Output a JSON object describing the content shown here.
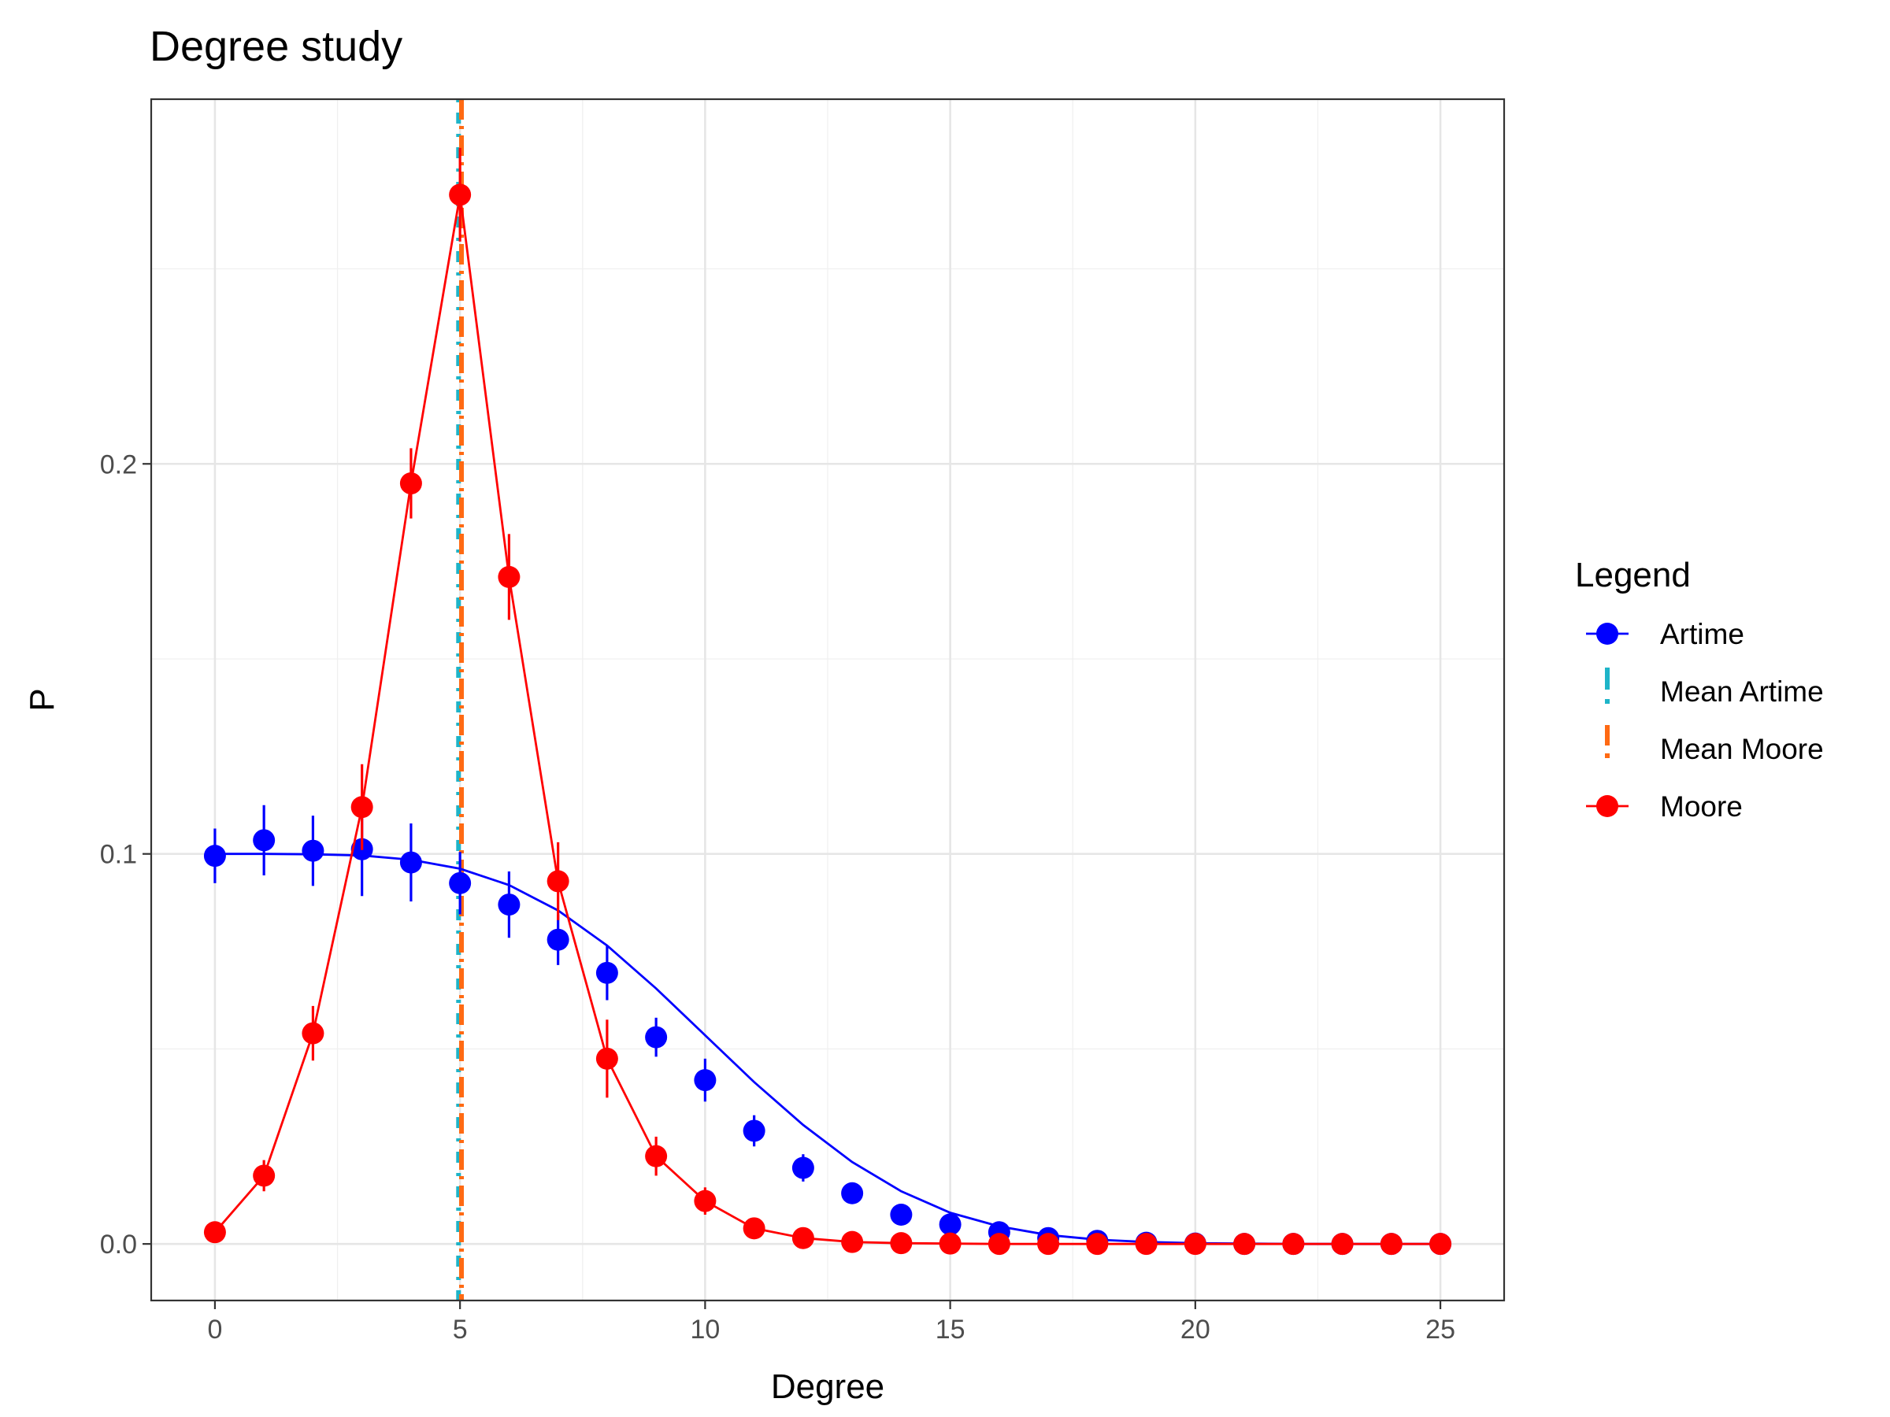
{
  "chart_data": {
    "type": "line",
    "title": "Degree study",
    "xlabel": "Degree",
    "ylabel": "P",
    "xlim": [
      -1.3,
      26.3
    ],
    "ylim": [
      -0.0145,
      0.2935
    ],
    "x_ticks": [
      0,
      5,
      10,
      15,
      20,
      25
    ],
    "x_tick_labels": [
      "0",
      "5",
      "10",
      "15",
      "20",
      "25"
    ],
    "y_ticks": [
      0.0,
      0.1,
      0.2
    ],
    "y_tick_labels": [
      "0.0",
      "0.1",
      "0.2"
    ],
    "grid": true,
    "legend": {
      "title": "Legend",
      "position": "right",
      "entries": [
        "Artime",
        "Mean Artime",
        "Mean Moore",
        "Moore"
      ]
    },
    "series": [
      {
        "name": "Artime",
        "color": "#0000ff",
        "x": [
          0,
          1,
          2,
          3,
          4,
          5,
          6,
          7,
          8,
          9,
          10,
          11,
          12,
          13,
          14,
          15,
          16,
          17,
          18,
          19,
          20,
          21,
          22,
          23,
          24,
          25
        ],
        "points": [
          0.0995,
          0.1035,
          0.1008,
          0.1012,
          0.0978,
          0.0925,
          0.087,
          0.078,
          0.0695,
          0.053,
          0.042,
          0.029,
          0.0195,
          0.013,
          0.0075,
          0.005,
          0.003,
          0.0015,
          0.0008,
          0.0003,
          0.0001,
          0.0,
          0.0,
          0.0,
          0.0,
          0.0
        ],
        "error": [
          0.007,
          0.009,
          0.009,
          0.012,
          0.01,
          0.008,
          0.0085,
          0.0065,
          0.007,
          0.005,
          0.0055,
          0.004,
          0.0035,
          0.002,
          0.001,
          0.0008,
          0.0005,
          0.0003,
          0.0002,
          0.0,
          0.0,
          0.0,
          0.0,
          0.0,
          0.0,
          0.0
        ],
        "fit": [
          0.1,
          0.1,
          0.0999,
          0.0996,
          0.0985,
          0.0962,
          0.092,
          0.0855,
          0.0765,
          0.0655,
          0.0535,
          0.0415,
          0.0305,
          0.021,
          0.0135,
          0.008,
          0.0045,
          0.0023,
          0.0011,
          0.0005,
          0.0002,
          0.0001,
          0.0,
          0.0,
          0.0,
          0.0
        ]
      },
      {
        "name": "Moore",
        "color": "#ff0000",
        "x": [
          0,
          1,
          2,
          3,
          4,
          5,
          6,
          7,
          8,
          9,
          10,
          11,
          12,
          13,
          14,
          15,
          16,
          17,
          18,
          19,
          20,
          21,
          22,
          23,
          24,
          25
        ],
        "points": [
          0.003,
          0.0175,
          0.054,
          0.112,
          0.195,
          0.269,
          0.171,
          0.093,
          0.0475,
          0.0225,
          0.011,
          0.004,
          0.0015,
          0.0005,
          0.0002,
          0.0001,
          0.0,
          0.0,
          0.0,
          0.0,
          0.0,
          0.0,
          0.0,
          0.0,
          0.0,
          0.0
        ],
        "error": [
          0.001,
          0.004,
          0.007,
          0.011,
          0.009,
          0.012,
          0.011,
          0.01,
          0.01,
          0.005,
          0.0035,
          0.001,
          0.0005,
          0.0002,
          0.0,
          0.0,
          0.0,
          0.0,
          0.0,
          0.0,
          0.0,
          0.0,
          0.0,
          0.0,
          0.0,
          0.0
        ]
      }
    ],
    "vlines": [
      {
        "name": "Mean Artime",
        "x": 4.97,
        "color": "#1eb4c8",
        "dash": "dotdash"
      },
      {
        "name": "Mean Moore",
        "x": 5.03,
        "color": "#ff6a13",
        "dash": "longdash-dot"
      }
    ]
  }
}
